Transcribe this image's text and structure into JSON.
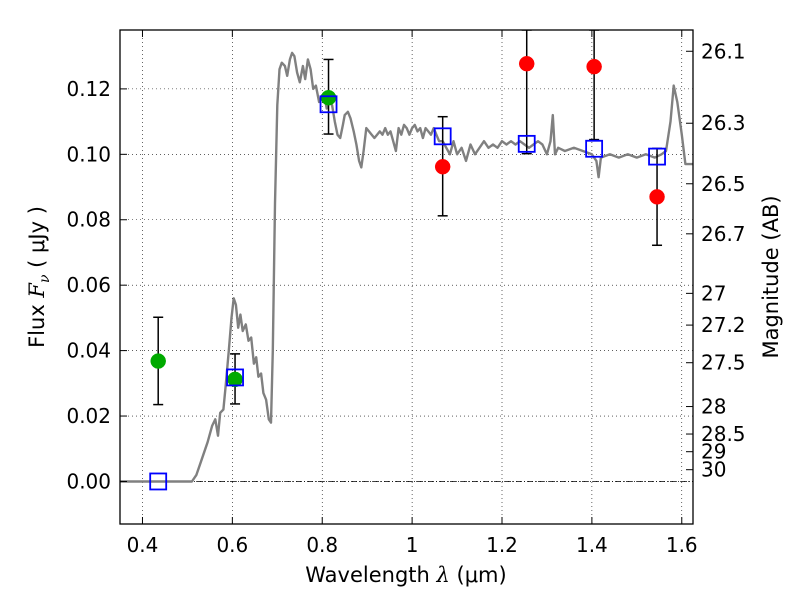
{
  "chart_data": {
    "type": "scatter",
    "title": "",
    "xlabel": {
      "prefix": "Wavelength  ",
      "symbol": "λ",
      "suffix": " (μm)"
    },
    "ylabel": {
      "prefix": "Flux  ",
      "symbol": "F",
      "subscript": "ν",
      "suffix": "  ( μJy )"
    },
    "ylabel_right": "Magnitude (AB)",
    "xlim": [
      0.35,
      1.625
    ],
    "ylim": [
      -0.013,
      0.138
    ],
    "x_ticks": [
      0.4,
      0.6,
      0.8,
      1.0,
      1.2,
      1.4,
      1.6
    ],
    "x_tick_labels": [
      "0.4",
      "0.6",
      "0.8",
      "1",
      "1.2",
      "1.4",
      "1.6"
    ],
    "y_ticks": [
      0.0,
      0.02,
      0.04,
      0.06,
      0.08,
      0.1,
      0.12
    ],
    "y_tick_labels": [
      "0.00",
      "0.02",
      "0.04",
      "0.06",
      "0.08",
      "0.10",
      "0.12"
    ],
    "right_axis": {
      "note": "AB magnitude tick labels placed at corresponding flux",
      "ticks": [
        {
          "label": "26.1",
          "flux": 0.1315
        },
        {
          "label": "26.3",
          "flux": 0.1095
        },
        {
          "label": "26.5",
          "flux": 0.091
        },
        {
          "label": "26.7",
          "flux": 0.0757
        },
        {
          "label": "27",
          "flux": 0.0575
        },
        {
          "label": "27.2",
          "flux": 0.0478
        },
        {
          "label": "27.5",
          "flux": 0.0363
        },
        {
          "label": "28",
          "flux": 0.0229
        },
        {
          "label": "28.5",
          "flux": 0.0145
        },
        {
          "label": "29",
          "flux": 0.0091
        },
        {
          "label": "30",
          "flux": 0.0036
        }
      ]
    },
    "grid": true,
    "zero_line": true,
    "colors": {
      "model": "#808080",
      "detection": "#00aa00",
      "measured": "#ff0000",
      "model_band": "#0000ff",
      "error_bar": "#000000"
    },
    "series": [
      {
        "kind": "line",
        "points": [
          [
            0.35,
            0.0
          ],
          [
            0.51,
            0.0
          ],
          [
            0.52,
            0.002
          ],
          [
            0.53,
            0.006
          ],
          [
            0.545,
            0.012
          ],
          [
            0.555,
            0.017
          ],
          [
            0.562,
            0.019
          ],
          [
            0.568,
            0.014
          ],
          [
            0.573,
            0.021
          ],
          [
            0.58,
            0.022
          ],
          [
            0.585,
            0.029
          ],
          [
            0.592,
            0.04
          ],
          [
            0.598,
            0.05
          ],
          [
            0.603,
            0.056
          ],
          [
            0.608,
            0.054
          ],
          [
            0.613,
            0.047
          ],
          [
            0.618,
            0.051
          ],
          [
            0.623,
            0.046
          ],
          [
            0.63,
            0.048
          ],
          [
            0.636,
            0.043
          ],
          [
            0.642,
            0.044
          ],
          [
            0.648,
            0.036
          ],
          [
            0.653,
            0.038
          ],
          [
            0.658,
            0.032
          ],
          [
            0.664,
            0.033
          ],
          [
            0.669,
            0.027
          ],
          [
            0.675,
            0.025
          ],
          [
            0.681,
            0.019
          ],
          [
            0.686,
            0.018
          ],
          [
            0.69,
            0.04
          ],
          [
            0.695,
            0.085
          ],
          [
            0.7,
            0.115
          ],
          [
            0.705,
            0.126
          ],
          [
            0.71,
            0.128
          ],
          [
            0.717,
            0.127
          ],
          [
            0.722,
            0.124
          ],
          [
            0.728,
            0.129
          ],
          [
            0.733,
            0.131
          ],
          [
            0.738,
            0.13
          ],
          [
            0.744,
            0.125
          ],
          [
            0.75,
            0.122
          ],
          [
            0.757,
            0.127
          ],
          [
            0.762,
            0.123
          ],
          [
            0.768,
            0.129
          ],
          [
            0.774,
            0.126
          ],
          [
            0.78,
            0.12
          ],
          [
            0.786,
            0.121
          ],
          [
            0.793,
            0.116
          ],
          [
            0.8,
            0.118
          ],
          [
            0.806,
            0.117
          ],
          [
            0.81,
            0.114
          ],
          [
            0.816,
            0.116
          ],
          [
            0.822,
            0.115
          ],
          [
            0.828,
            0.11
          ],
          [
            0.834,
            0.106
          ],
          [
            0.84,
            0.105
          ],
          [
            0.846,
            0.109
          ],
          [
            0.85,
            0.112
          ],
          [
            0.857,
            0.113
          ],
          [
            0.863,
            0.111
          ],
          [
            0.87,
            0.107
          ],
          [
            0.876,
            0.103
          ],
          [
            0.882,
            0.098
          ],
          [
            0.887,
            0.096
          ],
          [
            0.892,
            0.101
          ],
          [
            0.898,
            0.108
          ],
          [
            0.904,
            0.107
          ],
          [
            0.91,
            0.106
          ],
          [
            0.916,
            0.105
          ],
          [
            0.922,
            0.106
          ],
          [
            0.928,
            0.107
          ],
          [
            0.934,
            0.106
          ],
          [
            0.94,
            0.108
          ],
          [
            0.946,
            0.106
          ],
          [
            0.952,
            0.107
          ],
          [
            0.958,
            0.104
          ],
          [
            0.964,
            0.101
          ],
          [
            0.97,
            0.108
          ],
          [
            0.976,
            0.106
          ],
          [
            0.982,
            0.109
          ],
          [
            0.988,
            0.108
          ],
          [
            0.994,
            0.106
          ],
          [
            1.0,
            0.108
          ],
          [
            1.006,
            0.109
          ],
          [
            1.012,
            0.107
          ],
          [
            1.018,
            0.108
          ],
          [
            1.024,
            0.105
          ],
          [
            1.03,
            0.108
          ],
          [
            1.036,
            0.107
          ],
          [
            1.042,
            0.106
          ],
          [
            1.048,
            0.108
          ],
          [
            1.054,
            0.106
          ],
          [
            1.06,
            0.104
          ],
          [
            1.068,
            0.104
          ],
          [
            1.076,
            0.102
          ],
          [
            1.084,
            0.1
          ],
          [
            1.092,
            0.104
          ],
          [
            1.1,
            0.1
          ],
          [
            1.11,
            0.102
          ],
          [
            1.12,
            0.098
          ],
          [
            1.13,
            0.103
          ],
          [
            1.14,
            0.1
          ],
          [
            1.15,
            0.102
          ],
          [
            1.16,
            0.104
          ],
          [
            1.17,
            0.102
          ],
          [
            1.18,
            0.103
          ],
          [
            1.19,
            0.102
          ],
          [
            1.2,
            0.104
          ],
          [
            1.21,
            0.103
          ],
          [
            1.22,
            0.104
          ],
          [
            1.23,
            0.103
          ],
          [
            1.24,
            0.104
          ],
          [
            1.25,
            0.103
          ],
          [
            1.26,
            0.102
          ],
          [
            1.27,
            0.103
          ],
          [
            1.28,
            0.104
          ],
          [
            1.29,
            0.103
          ],
          [
            1.3,
            0.1
          ],
          [
            1.308,
            0.104
          ],
          [
            1.313,
            0.112
          ],
          [
            1.318,
            0.1
          ],
          [
            1.325,
            0.102
          ],
          [
            1.34,
            0.101
          ],
          [
            1.36,
            0.102
          ],
          [
            1.38,
            0.101
          ],
          [
            1.4,
            0.1
          ],
          [
            1.41,
            0.098
          ],
          [
            1.415,
            0.093
          ],
          [
            1.42,
            0.099
          ],
          [
            1.44,
            0.1
          ],
          [
            1.46,
            0.099
          ],
          [
            1.48,
            0.1
          ],
          [
            1.5,
            0.099
          ],
          [
            1.52,
            0.1
          ],
          [
            1.54,
            0.099
          ],
          [
            1.555,
            0.1
          ],
          [
            1.565,
            0.101
          ],
          [
            1.575,
            0.11
          ],
          [
            1.582,
            0.121
          ],
          [
            1.59,
            0.116
          ],
          [
            1.6,
            0.106
          ],
          [
            1.608,
            0.097
          ],
          [
            1.625,
            0.097
          ]
        ]
      },
      {
        "kind": "points",
        "marker": "circle",
        "points": [
          {
            "x": 0.435,
            "y": 0.0368,
            "err_lo": 0.0235,
            "err_hi": 0.0502
          },
          {
            "x": 0.606,
            "y": 0.0312,
            "err_lo": 0.0237,
            "err_hi": 0.039
          },
          {
            "x": 0.814,
            "y": 0.1173,
            "err_lo": 0.1062,
            "err_hi": 0.129
          }
        ]
      },
      {
        "kind": "points",
        "marker": "circle",
        "points": [
          {
            "x": 1.068,
            "y": 0.0962,
            "err_lo": 0.0812,
            "err_hi": 0.1115
          },
          {
            "x": 1.255,
            "y": 0.1277,
            "err_lo": 0.1002,
            "err_hi": 0.138
          },
          {
            "x": 1.405,
            "y": 0.1268,
            "err_lo": 0.1045,
            "err_hi": 0.138
          },
          {
            "x": 1.545,
            "y": 0.087,
            "err_lo": 0.0722,
            "err_hi": 0.1018
          }
        ]
      },
      {
        "kind": "points",
        "marker": "square",
        "points": [
          {
            "x": 0.435,
            "y": 0.0
          },
          {
            "x": 0.606,
            "y": 0.0318
          },
          {
            "x": 0.814,
            "y": 0.1153
          },
          {
            "x": 1.068,
            "y": 0.1055
          },
          {
            "x": 1.255,
            "y": 0.1032
          },
          {
            "x": 1.405,
            "y": 0.1017
          },
          {
            "x": 1.545,
            "y": 0.0993
          }
        ]
      }
    ]
  }
}
